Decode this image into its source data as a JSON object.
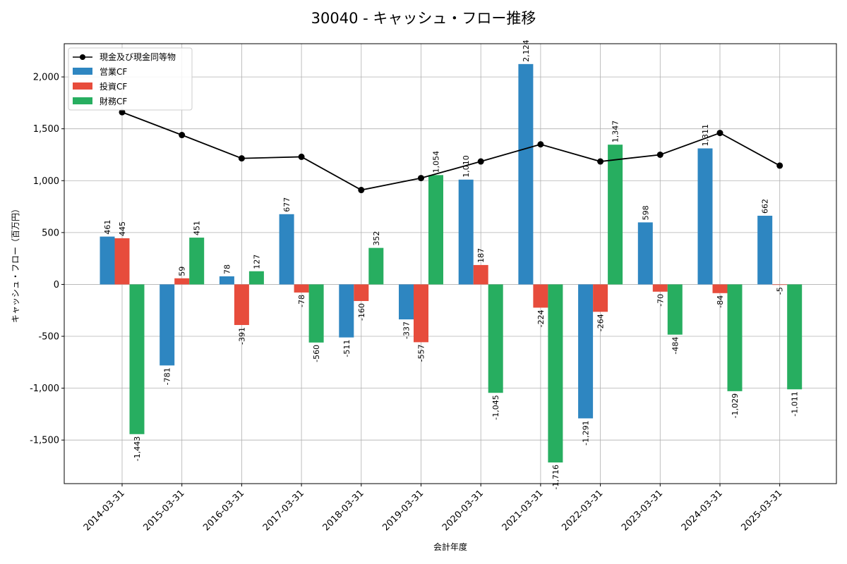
{
  "chart_data": {
    "type": "bar",
    "title": "30040 - キャッシュ・フロー推移",
    "xlabel": "会計年度",
    "ylabel": "キャッシュ・フロー（百万円）",
    "ylim": [
      -1920,
      2320
    ],
    "yticks": [
      -1500,
      -1000,
      -500,
      0,
      500,
      1000,
      1500,
      2000
    ],
    "ytick_labels": [
      "-1,500",
      "-1,000",
      "-500",
      "0",
      "500",
      "1,000",
      "1,500",
      "2,000"
    ],
    "grid": true,
    "legend_position": "top-left",
    "categories": [
      "2014-03-31",
      "2015-03-31",
      "2016-03-31",
      "2017-03-31",
      "2018-03-31",
      "2019-03-31",
      "2020-03-31",
      "2021-03-31",
      "2022-03-31",
      "2023-03-31",
      "2024-03-31",
      "2025-03-31"
    ],
    "series": [
      {
        "name": "営業CF",
        "kind": "bar",
        "color": "#2e86c1",
        "values": [
          461,
          -781,
          78,
          677,
          -511,
          -337,
          1010,
          2124,
          -1291,
          598,
          1311,
          662
        ],
        "labels": [
          "461",
          "-781",
          "78",
          "677",
          "-511",
          "-337",
          "1,010",
          "2,124",
          "-1,291",
          "598",
          "1,311",
          "662"
        ]
      },
      {
        "name": "投資CF",
        "kind": "bar",
        "color": "#e74c3c",
        "values": [
          445,
          59,
          -391,
          -78,
          -160,
          -557,
          187,
          -224,
          -264,
          -70,
          -84,
          -5
        ],
        "labels": [
          "445",
          "59",
          "-391",
          "-78",
          "-160",
          "-557",
          "187",
          "-224",
          "-264",
          "-70",
          "-84",
          "-5"
        ]
      },
      {
        "name": "財務CF",
        "kind": "bar",
        "color": "#27ae60",
        "values": [
          -1443,
          451,
          127,
          -560,
          352,
          1054,
          -1045,
          -1716,
          1347,
          -484,
          -1029,
          -1011
        ],
        "labels": [
          "-1,443",
          "451",
          "127",
          "-560",
          "352",
          "1,054",
          "-1,045",
          "-1,716",
          "1,347",
          "-484",
          "-1,029",
          "-1,011"
        ]
      },
      {
        "name": "現金及び現金同等物",
        "kind": "line",
        "color": "#000000",
        "values": [
          1660,
          1440,
          1215,
          1230,
          910,
          1025,
          1185,
          1350,
          1185,
          1250,
          1460,
          1145
        ]
      }
    ]
  }
}
